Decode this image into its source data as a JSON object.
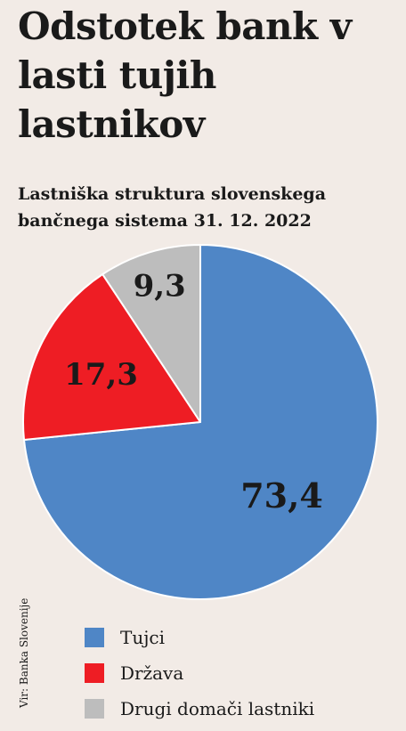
{
  "chart_data": {
    "type": "pie",
    "title": "Odstotek bank v lasti tujih lastnikov",
    "subtitle": "Lastniška struktura slovenskega bančnega sistema 31. 12. 2022",
    "categories": [
      "Tujci",
      "Država",
      "Drugi domači lastniki"
    ],
    "values": [
      73.4,
      17.3,
      9.3
    ],
    "value_labels": [
      "73,4",
      "17,3",
      "9,3"
    ],
    "colors": [
      "#4f86c6",
      "#ee1d24",
      "#bdbdbd"
    ],
    "legend_placement": "bottom",
    "start": "top, clockwise"
  },
  "source": "Vir: Banka Slovenije"
}
